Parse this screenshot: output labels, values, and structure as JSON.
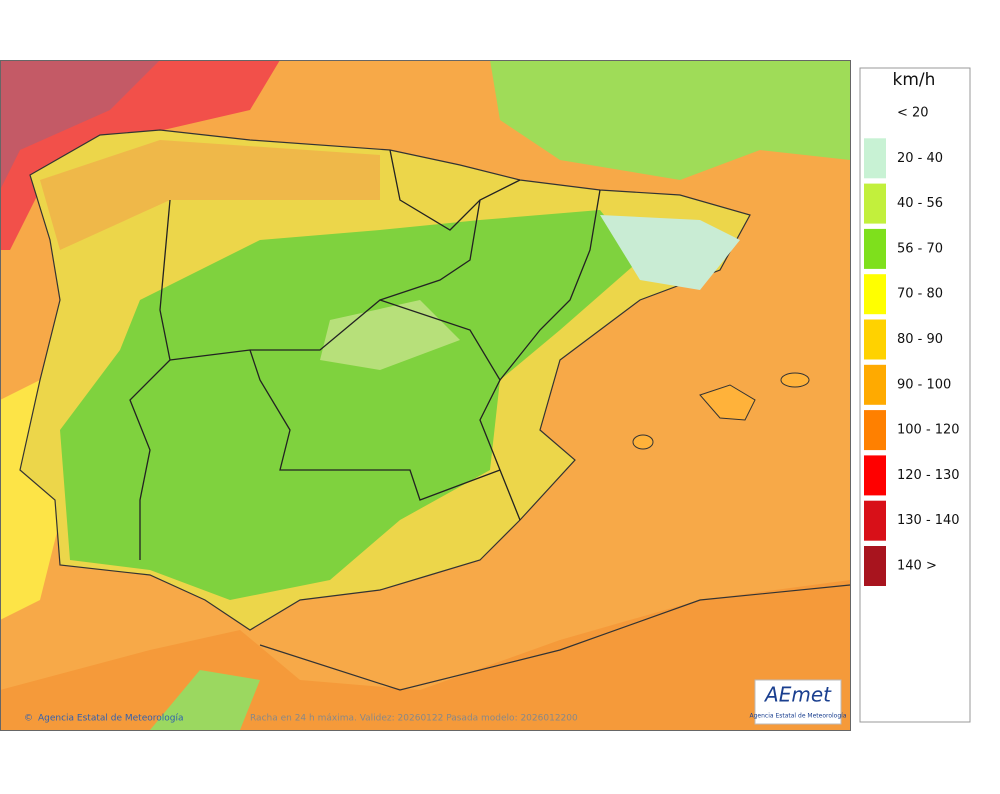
{
  "legend": {
    "unit": "km/h",
    "items": [
      {
        "label": "< 20",
        "color": "#ffffff"
      },
      {
        "label": "20 - 40",
        "color": "#c8f2d4"
      },
      {
        "label": "40 - 56",
        "color": "#c2f03c"
      },
      {
        "label": "56 - 70",
        "color": "#7ee01c"
      },
      {
        "label": "70 - 80",
        "color": "#ffff00"
      },
      {
        "label": "80 - 90",
        "color": "#ffd200"
      },
      {
        "label": "90 - 100",
        "color": "#ffaa00"
      },
      {
        "label": "100 - 120",
        "color": "#ff8000"
      },
      {
        "label": "120 - 130",
        "color": "#ff0000"
      },
      {
        "label": "130 - 140",
        "color": "#d81018"
      },
      {
        "label": "140 >",
        "color": "#a8141e"
      }
    ]
  },
  "footer": {
    "credit": "Agencia Estatal de Meteorología",
    "caption": "Racha en 24 h máxima. Validez: 20260122 Pasada modelo: 2026012200"
  },
  "logo": {
    "name": "AEmet",
    "subtitle": "Agencia Estatal de Meteorología"
  }
}
